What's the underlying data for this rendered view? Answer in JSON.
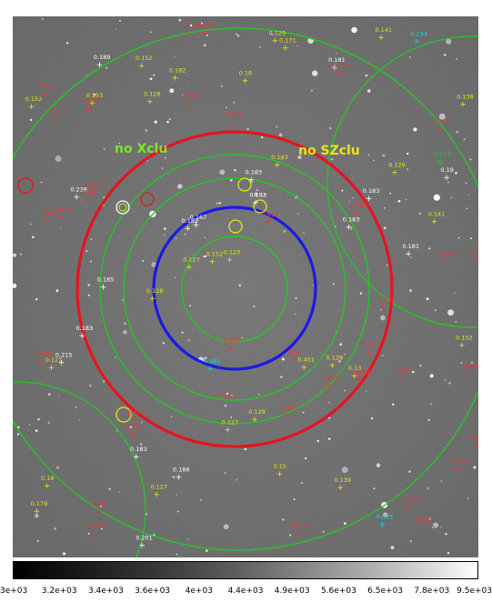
{
  "image": {
    "annotations": {
      "no_xclu": "no Xclu",
      "no_szclu": "no SZclu"
    },
    "colors": {
      "background_sky": "#4a4a4a",
      "red_circle": "#e6141e",
      "blue_circle": "#1a1ae6",
      "green_circle": "#22c822",
      "yellow_label": "#e6e614",
      "red_label": "#ff3030",
      "cyan_label": "#20d0e0",
      "magenta_label": "#d030d0",
      "white_label": "#ffffff",
      "annotation_green": "#7ae62a",
      "annotation_yellow": "#e6e614"
    },
    "labels": [
      {
        "t": "0.215",
        "c": "white"
      },
      {
        "t": "0.152",
        "c": "yellow"
      },
      {
        "t": "0.201",
        "c": "white"
      },
      {
        "t": "0.185",
        "c": "white"
      },
      {
        "t": "0.339",
        "c": "red"
      },
      {
        "t": "0.355",
        "c": "red"
      },
      {
        "t": "0.152",
        "c": "yellow"
      },
      {
        "t": "0.604",
        "c": "red"
      },
      {
        "t": "0.373",
        "c": "red"
      },
      {
        "t": "0.616",
        "c": "red"
      },
      {
        "t": "0.541",
        "c": "red"
      },
      {
        "t": "0.336",
        "c": "red"
      },
      {
        "t": "0.18",
        "c": "yellow"
      },
      {
        "t": "0.13",
        "c": "yellow"
      },
      {
        "t": "0.525",
        "c": "red"
      },
      {
        "t": "0.385",
        "c": "red"
      },
      {
        "t": "0.549",
        "c": "red"
      },
      {
        "t": "0.182",
        "c": "yellow"
      },
      {
        "t": "0.123",
        "c": "yellow"
      },
      {
        "t": "0.152",
        "c": "yellow"
      },
      {
        "t": "0.397",
        "c": "red"
      },
      {
        "t": "0.189",
        "c": "white"
      },
      {
        "t": "0.234",
        "c": "cyan"
      },
      {
        "t": "0.179",
        "c": "yellow"
      },
      {
        "t": "0.127",
        "c": "yellow"
      },
      {
        "t": "0.183",
        "c": "white"
      },
      {
        "t": "0.186",
        "c": "white"
      },
      {
        "t": "0.167",
        "c": "white"
      },
      {
        "t": "0.127",
        "c": "yellow"
      },
      {
        "t": "0.139",
        "c": "yellow"
      },
      {
        "t": "0.493",
        "c": "red"
      },
      {
        "t": "0.143",
        "c": "yellow"
      },
      {
        "t": "0.141",
        "c": "yellow"
      },
      {
        "t": "0.182",
        "c": "white"
      },
      {
        "t": "0.183",
        "c": "white"
      },
      {
        "t": "0.672",
        "c": "red"
      },
      {
        "t": "0.183",
        "c": "white"
      },
      {
        "t": "0.127",
        "c": "yellow"
      },
      {
        "t": "0.129",
        "c": "yellow"
      },
      {
        "t": "0.128",
        "c": "yellow"
      },
      {
        "t": "0.181",
        "c": "white"
      },
      {
        "t": "0.183",
        "c": "white"
      },
      {
        "t": "0.153",
        "c": "yellow"
      },
      {
        "t": "0.127",
        "c": "yellow"
      },
      {
        "t": "0.399",
        "c": "red"
      },
      {
        "t": "0.181",
        "c": "white"
      },
      {
        "t": "0.128",
        "c": "yellow"
      },
      {
        "t": "0.443",
        "c": "red"
      },
      {
        "t": "0.437",
        "c": "red"
      },
      {
        "t": "0.182",
        "c": "white"
      },
      {
        "t": "0.126",
        "c": "yellow"
      },
      {
        "t": "0.152",
        "c": "yellow"
      },
      {
        "t": "0.539",
        "c": "red"
      },
      {
        "t": "0.18",
        "c": "yellow"
      },
      {
        "t": "0.19",
        "c": "white"
      },
      {
        "t": "0.758",
        "c": "red"
      },
      {
        "t": "0.138",
        "c": "yellow"
      },
      {
        "t": "0.48",
        "c": "red"
      },
      {
        "t": "0.783",
        "c": "red"
      },
      {
        "t": "0.534",
        "c": "red"
      },
      {
        "t": "0.183",
        "c": "white"
      },
      {
        "t": "0.543",
        "c": "red"
      },
      {
        "t": "0.226",
        "c": "white"
      },
      {
        "t": "0.736",
        "c": "red"
      },
      {
        "t": "0.171",
        "c": "yellow"
      },
      {
        "t": "0.129",
        "c": "yellow"
      },
      {
        "t": "0.128",
        "c": "yellow"
      },
      {
        "t": "0.771",
        "c": "red"
      },
      {
        "t": "0.637",
        "c": "red"
      },
      {
        "t": "0.537",
        "c": "red"
      },
      {
        "t": "0.734",
        "c": "red"
      },
      {
        "t": "0.317",
        "c": "red"
      },
      {
        "t": "0.44",
        "c": "red"
      },
      {
        "t": "0.15",
        "c": "yellow"
      },
      {
        "t": "0.141",
        "c": "yellow"
      },
      {
        "t": "0.439",
        "c": "red"
      },
      {
        "t": "0.523",
        "c": "red"
      },
      {
        "t": "0.539",
        "c": "red"
      },
      {
        "t": "0.577",
        "c": "green"
      },
      {
        "t": "0.025",
        "c": "cyan"
      },
      {
        "t": "0.045",
        "c": "red"
      },
      {
        "t": "0.614",
        "c": "red"
      },
      {
        "t": "0.392",
        "c": "red"
      },
      {
        "t": "0.528",
        "c": "red"
      },
      {
        "t": "0.451",
        "c": "yellow"
      },
      {
        "t": "0.081",
        "c": "cyan"
      },
      {
        "t": "0.442",
        "c": "red"
      },
      {
        "t": "0.582",
        "c": "red"
      }
    ],
    "colorbar": {
      "ticks": [
        "3e+03",
        "3.2e+03",
        "3.4e+03",
        "3.6e+03",
        "4e+03",
        "4.4e+03",
        "4.9e+03",
        "5.6e+03",
        "6.5e+03",
        "7.8e+03",
        "9.5e+03"
      ]
    }
  }
}
